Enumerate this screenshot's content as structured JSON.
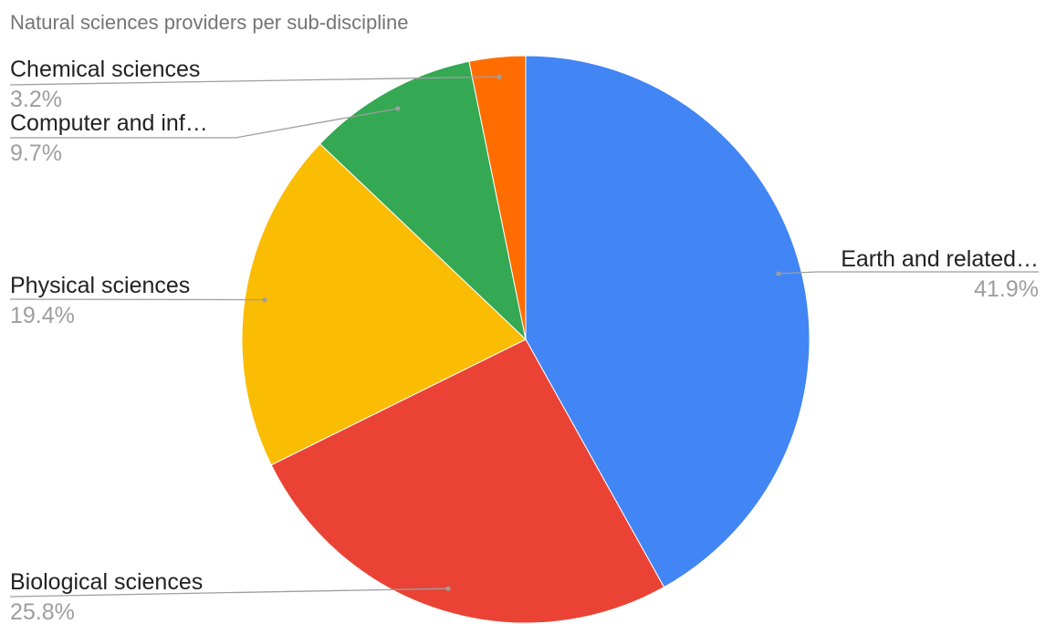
{
  "chart_data": {
    "type": "pie",
    "title": "Natural sciences providers per sub-discipline",
    "slices": [
      {
        "label": "Earth and related…",
        "value": 41.9,
        "value_label": "41.9%",
        "color": "#4285f4",
        "label_side": "right"
      },
      {
        "label": "Biological sciences",
        "value": 25.8,
        "value_label": "25.8%",
        "color": "#ea4335",
        "label_side": "left"
      },
      {
        "label": "Physical sciences",
        "value": 19.4,
        "value_label": "19.4%",
        "color": "#fbbc04",
        "label_side": "left"
      },
      {
        "label": "Computer and inf…",
        "value": 9.7,
        "value_label": "9.7%",
        "color": "#34a853",
        "label_side": "left"
      },
      {
        "label": "Chemical sciences",
        "value": 3.2,
        "value_label": "3.2%",
        "color": "#ff6d01",
        "label_side": "left"
      }
    ],
    "start_angle": "12 o'clock",
    "direction": "clockwise",
    "legend": "none",
    "leader_line_color": "#9e9e9e"
  }
}
